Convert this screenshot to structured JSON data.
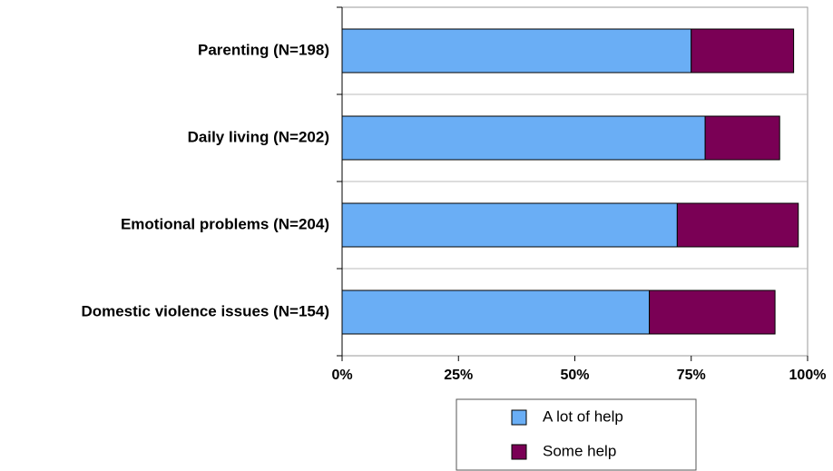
{
  "chart_data": {
    "type": "bar",
    "orientation": "horizontal",
    "stacked": true,
    "categories": [
      "Parenting (N=198)",
      "Daily living (N=202)",
      "Emotional problems (N=204)",
      "Domestic violence issues  (N=154)"
    ],
    "series": [
      {
        "name": "A lot of help",
        "color": "#6aaef5",
        "values": [
          75,
          78,
          72,
          66
        ]
      },
      {
        "name": "Some help",
        "color": "#7a0055",
        "values": [
          22,
          16,
          26,
          27
        ]
      }
    ],
    "xlim": [
      0,
      100
    ],
    "xticks": [
      {
        "value": 0,
        "label": "0%"
      },
      {
        "value": 25,
        "label": "25%"
      },
      {
        "value": 50,
        "label": "50%"
      },
      {
        "value": 75,
        "label": "75%"
      },
      {
        "value": 100,
        "label": "100%"
      }
    ],
    "legend": "bottom"
  }
}
